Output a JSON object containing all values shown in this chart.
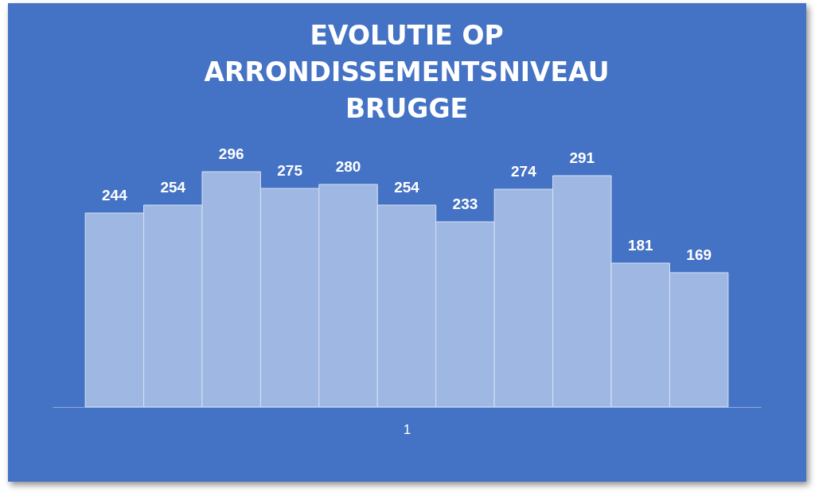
{
  "chart_data": {
    "type": "bar",
    "title": "EVOLUTIE OP ARRONDISSEMENTSNIVEAU BRUGGE",
    "xlabel": "1",
    "categories": [
      null,
      null,
      null,
      null,
      null,
      null,
      null,
      null,
      null,
      null,
      null
    ],
    "values": [
      244,
      254,
      296,
      275,
      280,
      254,
      233,
      274,
      291,
      181,
      169
    ],
    "colors": [
      "#9fb8e3",
      "#9fb8e3",
      "#9fb8e3",
      "#9fb8e3",
      "#9fb8e3",
      "#9fb8e3",
      "#9fb8e3",
      "#9fb8e3",
      "#9fb8e3",
      "#9fb8e3",
      "#9fb8e3"
    ],
    "data_labels": true,
    "grid": false,
    "tick_labels": false
  }
}
